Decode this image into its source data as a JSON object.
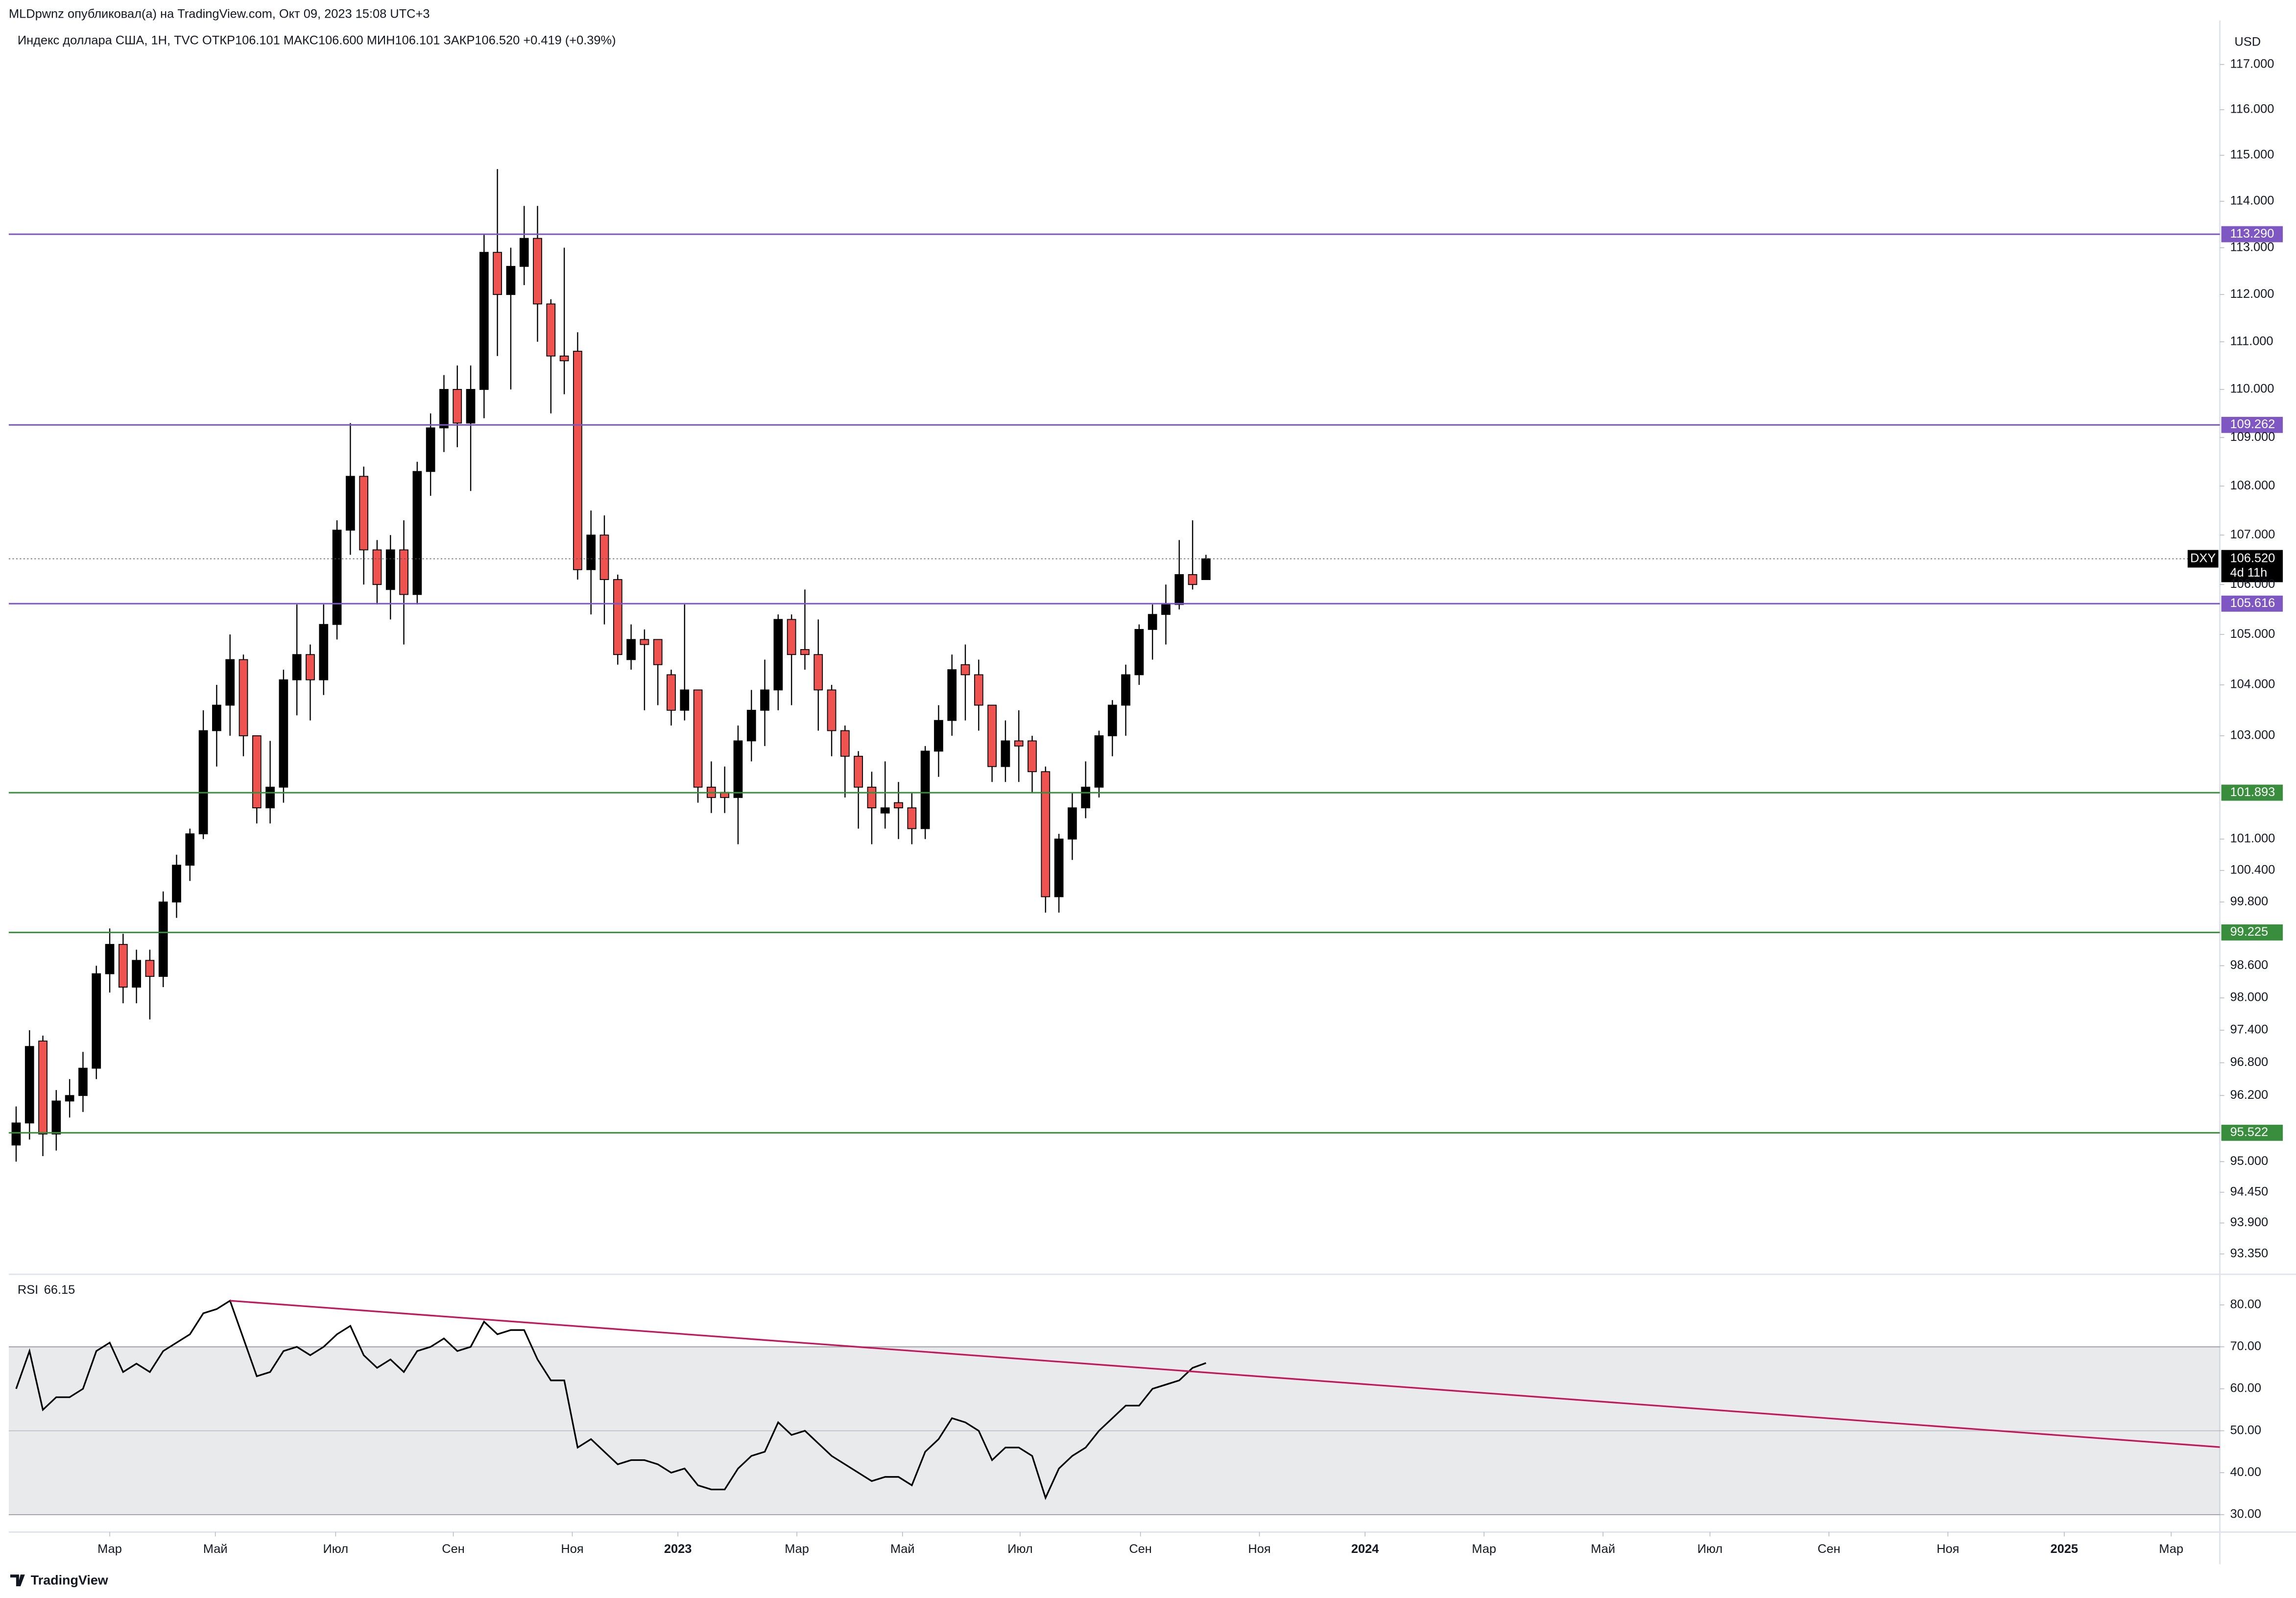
{
  "header": {
    "published": "MLDpwnz опубликовал(а) на TradingView.com, Окт 09, 2023 15:08 UTC+3",
    "logo": "TradingView"
  },
  "chart_data": [
    {
      "type": "candlestick",
      "title": "Индекс доллара США, 1Н, TVC  ОТКР106.101  МАКС106.600  МИН106.101  ЗАКР106.520  +0.419 (+0.39%)",
      "y_unit": "USD",
      "symbol": "DXY",
      "countdown": "4d 11h",
      "log_scale": true,
      "grid": false,
      "up_color": "#000000",
      "down_color": "#ef5350",
      "x": [
        0,
        1,
        2,
        3,
        4,
        5,
        6,
        7,
        8,
        9,
        10,
        11,
        12,
        13,
        14,
        15,
        16,
        17,
        18,
        19,
        20,
        21,
        22,
        23,
        24,
        25,
        26,
        27,
        28,
        29,
        30,
        31,
        32,
        33,
        34,
        35,
        36,
        37,
        38,
        39,
        40,
        41,
        42,
        43,
        44,
        45,
        46,
        47,
        48,
        49,
        50,
        51,
        52,
        53,
        54,
        55,
        56,
        57,
        58,
        59,
        60,
        61,
        62,
        63,
        64,
        65,
        66,
        67,
        68,
        69,
        70,
        71,
        72,
        73,
        74,
        75,
        76,
        77,
        78,
        79,
        80,
        81,
        82,
        83,
        84,
        85,
        86,
        87,
        88,
        89
      ],
      "open": [
        95.3,
        95.7,
        97.2,
        95.5,
        96.1,
        96.2,
        96.7,
        98.45,
        99.0,
        98.2,
        98.7,
        98.4,
        99.8,
        100.5,
        101.1,
        103.1,
        103.6,
        104.5,
        103.0,
        101.6,
        102.0,
        104.1,
        104.6,
        104.1,
        105.2,
        107.1,
        108.2,
        106.7,
        105.9,
        106.7,
        105.8,
        108.3,
        109.2,
        110.0,
        109.3,
        110.0,
        112.9,
        112.0,
        112.6,
        113.2,
        111.8,
        110.7,
        110.8,
        106.3,
        107.0,
        106.1,
        104.5,
        104.9,
        104.9,
        104.2,
        103.5,
        103.9,
        102.0,
        101.9,
        101.8,
        102.9,
        103.5,
        103.9,
        105.3,
        104.7,
        104.6,
        103.9,
        103.1,
        102.6,
        102.0,
        101.5,
        101.7,
        101.6,
        101.2,
        102.7,
        103.3,
        104.4,
        104.2,
        103.6,
        102.4,
        102.9,
        102.9,
        102.3,
        99.9,
        101.0,
        101.6,
        102.0,
        103.0,
        103.6,
        104.2,
        105.1,
        105.4,
        105.6,
        106.2,
        106.1
      ],
      "high": [
        96.0,
        97.4,
        97.3,
        96.3,
        96.5,
        97.0,
        98.6,
        99.3,
        99.2,
        98.9,
        98.9,
        100.0,
        100.7,
        101.2,
        103.5,
        104.0,
        105.0,
        104.6,
        103.0,
        102.9,
        104.3,
        105.6,
        104.8,
        105.6,
        107.3,
        109.3,
        108.4,
        106.9,
        107.0,
        107.3,
        108.5,
        109.5,
        110.3,
        110.5,
        110.5,
        113.3,
        114.7,
        113.0,
        113.9,
        113.9,
        111.9,
        113.0,
        111.2,
        107.5,
        107.4,
        106.2,
        105.2,
        105.1,
        104.9,
        104.3,
        105.6,
        103.9,
        102.5,
        102.4,
        103.2,
        103.9,
        104.5,
        105.4,
        105.4,
        105.9,
        105.3,
        104.0,
        103.2,
        102.7,
        102.3,
        102.5,
        102.1,
        101.9,
        102.8,
        103.6,
        104.6,
        104.8,
        104.5,
        103.6,
        103.3,
        103.5,
        103.0,
        102.4,
        101.1,
        101.9,
        102.5,
        103.1,
        103.7,
        104.4,
        105.2,
        105.6,
        106.0,
        106.9,
        107.3,
        106.6
      ],
      "low": [
        95.0,
        95.4,
        95.1,
        95.2,
        95.8,
        95.9,
        96.5,
        98.1,
        97.9,
        97.9,
        97.6,
        98.2,
        99.5,
        100.2,
        101.0,
        102.4,
        103.0,
        102.6,
        101.3,
        101.3,
        101.7,
        103.4,
        103.3,
        103.8,
        104.9,
        106.6,
        106.0,
        105.6,
        105.3,
        104.8,
        105.6,
        107.8,
        108.7,
        108.8,
        107.9,
        109.4,
        110.7,
        110.0,
        112.2,
        111.0,
        109.5,
        109.9,
        106.1,
        105.4,
        105.2,
        104.4,
        104.3,
        103.5,
        103.6,
        103.2,
        103.3,
        101.7,
        101.5,
        101.5,
        100.9,
        102.5,
        102.8,
        103.5,
        103.6,
        104.3,
        103.1,
        102.6,
        101.8,
        101.2,
        100.9,
        101.2,
        101.0,
        100.9,
        101.0,
        102.2,
        103.0,
        103.3,
        103.1,
        102.1,
        102.1,
        102.1,
        101.9,
        99.6,
        99.6,
        100.6,
        101.4,
        101.8,
        102.6,
        103.0,
        104.0,
        104.5,
        104.8,
        105.5,
        105.9,
        106.1
      ],
      "close": [
        95.7,
        97.1,
        95.5,
        96.1,
        96.2,
        96.7,
        98.45,
        99.0,
        98.2,
        98.7,
        98.4,
        99.8,
        100.5,
        101.1,
        103.1,
        103.6,
        104.5,
        103.0,
        101.6,
        102.0,
        104.1,
        104.6,
        104.1,
        105.2,
        107.1,
        108.2,
        106.7,
        106.0,
        106.7,
        105.8,
        108.3,
        109.2,
        110.0,
        109.3,
        110.0,
        112.9,
        112.0,
        112.6,
        113.2,
        111.8,
        110.7,
        110.6,
        106.3,
        107.0,
        106.1,
        104.6,
        104.9,
        104.8,
        104.4,
        103.5,
        103.9,
        102.0,
        101.8,
        101.8,
        102.9,
        103.5,
        103.9,
        105.3,
        104.6,
        104.6,
        103.9,
        103.1,
        102.6,
        102.0,
        101.6,
        101.6,
        101.6,
        101.2,
        102.7,
        103.3,
        104.3,
        104.2,
        103.6,
        102.4,
        102.9,
        102.8,
        102.3,
        99.9,
        101.0,
        101.6,
        102.0,
        103.0,
        103.6,
        104.2,
        105.1,
        105.4,
        105.6,
        106.2,
        106.0,
        106.52
      ],
      "last_price": {
        "value": 106.52,
        "label": "106.520"
      },
      "levels": [
        {
          "value": 113.29,
          "label": "113.290",
          "color": "#7e57c2"
        },
        {
          "value": 109.262,
          "label": "109.262",
          "color": "#7e57c2"
        },
        {
          "value": 105.616,
          "label": "105.616",
          "color": "#7e57c2"
        },
        {
          "value": 101.893,
          "label": "101.893",
          "color": "#388e3c"
        },
        {
          "value": 99.225,
          "label": "99.225",
          "color": "#388e3c"
        },
        {
          "value": 95.522,
          "label": "95.522",
          "color": "#388e3c"
        }
      ],
      "xlim": [
        -0.55,
        164.84
      ],
      "xticks": [
        {
          "value": 7.0,
          "label": "Мар"
        },
        {
          "value": 14.9,
          "label": "Май"
        },
        {
          "value": 23.9,
          "label": "Июл"
        },
        {
          "value": 32.7,
          "label": "Сен"
        },
        {
          "value": 41.6,
          "label": "Ноя"
        },
        {
          "value": 49.5,
          "label": "2023"
        },
        {
          "value": 58.4,
          "label": "Мар"
        },
        {
          "value": 66.3,
          "label": "Май"
        },
        {
          "value": 75.1,
          "label": "Июл"
        },
        {
          "value": 84.1,
          "label": "Сен"
        },
        {
          "value": 93.0,
          "label": "Ноя"
        },
        {
          "value": 100.9,
          "label": "2024"
        },
        {
          "value": 109.8,
          "label": "Мар"
        },
        {
          "value": 118.7,
          "label": "Май"
        },
        {
          "value": 126.7,
          "label": "Июл"
        },
        {
          "value": 135.6,
          "label": "Сен"
        },
        {
          "value": 144.5,
          "label": "Ноя"
        },
        {
          "value": 153.2,
          "label": "2025"
        },
        {
          "value": 161.2,
          "label": "Мар"
        }
      ],
      "ylim": [
        92.99,
        117.98
      ],
      "yticks": [
        {
          "value": 117,
          "label": "117.000"
        },
        {
          "value": 116,
          "label": "116.000"
        },
        {
          "value": 115,
          "label": "115.000"
        },
        {
          "value": 114,
          "label": "114.000"
        },
        {
          "value": 113,
          "label": "113.000"
        },
        {
          "value": 112,
          "label": "112.000"
        },
        {
          "value": 111,
          "label": "111.000"
        },
        {
          "value": 110,
          "label": "110.000"
        },
        {
          "value": 109,
          "label": "109.000"
        },
        {
          "value": 108,
          "label": "108.000"
        },
        {
          "value": 107,
          "label": "107.000"
        },
        {
          "value": 106,
          "label": "106.000"
        },
        {
          "value": 105,
          "label": "105.000"
        },
        {
          "value": 104,
          "label": "104.000"
        },
        {
          "value": 103,
          "label": "103.000"
        },
        {
          "value": 101,
          "label": "101.000"
        },
        {
          "value": 100.4,
          "label": "100.400"
        },
        {
          "value": 99.8,
          "label": "99.800"
        },
        {
          "value": 98.6,
          "label": "98.600"
        },
        {
          "value": 98,
          "label": "98.000"
        },
        {
          "value": 97.4,
          "label": "97.400"
        },
        {
          "value": 96.8,
          "label": "96.800"
        },
        {
          "value": 96.2,
          "label": "96.200"
        },
        {
          "value": 95,
          "label": "95.000"
        },
        {
          "value": 94.45,
          "label": "94.450"
        },
        {
          "value": 93.9,
          "label": "93.900"
        },
        {
          "value": 93.35,
          "label": "93.350"
        }
      ]
    },
    {
      "type": "line",
      "title": "RSI",
      "color": "#000000",
      "x": [
        0,
        1,
        2,
        3,
        4,
        5,
        6,
        7,
        8,
        9,
        10,
        11,
        12,
        13,
        14,
        15,
        16,
        17,
        18,
        19,
        20,
        21,
        22,
        23,
        24,
        25,
        26,
        27,
        28,
        29,
        30,
        31,
        32,
        33,
        34,
        35,
        36,
        37,
        38,
        39,
        40,
        41,
        42,
        43,
        44,
        45,
        46,
        47,
        48,
        49,
        50,
        51,
        52,
        53,
        54,
        55,
        56,
        57,
        58,
        59,
        60,
        61,
        62,
        63,
        64,
        65,
        66,
        67,
        68,
        69,
        70,
        71,
        72,
        73,
        74,
        75,
        76,
        77,
        78,
        79,
        80,
        81,
        82,
        83,
        84,
        85,
        86,
        87,
        88,
        89
      ],
      "values": [
        60,
        69,
        55,
        58,
        58,
        60,
        69,
        71,
        64,
        66,
        64,
        69,
        71,
        73,
        78,
        79,
        81,
        72,
        63,
        64,
        69,
        70,
        68,
        70,
        73,
        75,
        68,
        65,
        67,
        64,
        69,
        70,
        72,
        69,
        70,
        76,
        73,
        74,
        74,
        67,
        62,
        62,
        46,
        48,
        45,
        42,
        43,
        43,
        42,
        40,
        41,
        37,
        36,
        36,
        41,
        44,
        45,
        52,
        49,
        50,
        47,
        44,
        42,
        40,
        38,
        39,
        39,
        37,
        45,
        48,
        53,
        52,
        50,
        43,
        46,
        46,
        44,
        34,
        41,
        44,
        46,
        50,
        53,
        56,
        56,
        60,
        61,
        62,
        65,
        66.15
      ],
      "band": [
        30,
        70
      ],
      "midline": 50,
      "trendline": {
        "x": [
          16,
          164.84
        ],
        "values": [
          81,
          46.1
        ],
        "color": "#c2185b"
      },
      "xlim": [
        -0.55,
        164.84
      ],
      "ylim": [
        26.2,
        86.6
      ],
      "yticks": [
        {
          "value": 80,
          "label": "80.00"
        },
        {
          "value": 70,
          "label": "70.00"
        },
        {
          "value": 60,
          "label": "60.00"
        },
        {
          "value": 50,
          "label": "50.00"
        },
        {
          "value": 40,
          "label": "40.00"
        },
        {
          "value": 30,
          "label": "30.00"
        }
      ]
    }
  ]
}
